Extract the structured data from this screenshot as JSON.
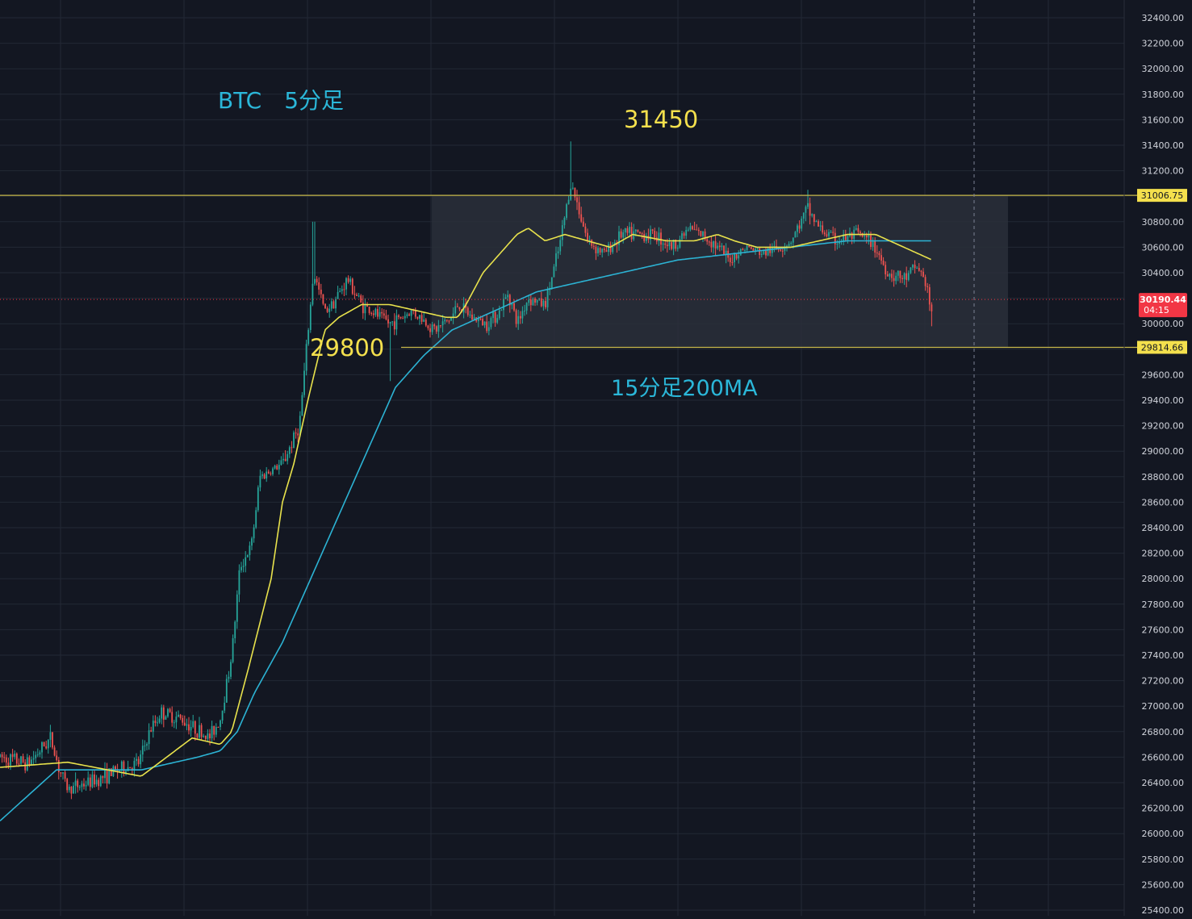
{
  "chart_data": {
    "type": "candlestick",
    "symbol_label": "BTC　5分足",
    "peak_label": "31450",
    "support_label": "29800",
    "ma_label": "15分足200MA",
    "y_axis_ticks": [
      "25400.00",
      "25600.00",
      "25800.00",
      "26000.00",
      "26200.00",
      "26400.00",
      "26600.00",
      "26800.00",
      "27000.00",
      "27200.00",
      "27400.00",
      "27600.00",
      "27800.00",
      "28000.00",
      "28200.00",
      "28400.00",
      "28600.00",
      "28800.00",
      "29000.00",
      "29200.00",
      "29400.00",
      "29600.00",
      "29800.00",
      "30000.00",
      "30200.00",
      "30400.00",
      "30600.00",
      "30800.00",
      "31000.00",
      "31200.00",
      "31400.00",
      "31600.00",
      "31800.00",
      "32000.00",
      "32200.00",
      "32400.00"
    ],
    "ylim": [
      25400,
      32400
    ],
    "grid": true,
    "horizontal_levels": [
      {
        "label": "31006.75",
        "value": 31006.75
      },
      {
        "label": "29814.66",
        "value": 29814.66
      }
    ],
    "current_price": {
      "label": "30190.44",
      "countdown": "04:15",
      "value": 30190.44
    },
    "range_box": {
      "top": 31006.75,
      "bottom": 29814.66
    },
    "price_anchors": [
      [
        0,
        26600
      ],
      [
        0.05,
        26550
      ],
      [
        0.09,
        26750
      ],
      [
        0.105,
        26500
      ],
      [
        0.12,
        26350
      ],
      [
        0.17,
        26420
      ],
      [
        0.21,
        26500
      ],
      [
        0.245,
        26550
      ],
      [
        0.265,
        26800
      ],
      [
        0.285,
        26950
      ],
      [
        0.32,
        26900
      ],
      [
        0.37,
        26750
      ],
      [
        0.39,
        26900
      ],
      [
        0.41,
        27400
      ],
      [
        0.425,
        28100
      ],
      [
        0.445,
        28250
      ],
      [
        0.46,
        28800
      ],
      [
        0.5,
        28900
      ],
      [
        0.53,
        29200
      ],
      [
        0.555,
        30400
      ],
      [
        0.575,
        30100
      ],
      [
        0.595,
        30200
      ],
      [
        0.615,
        30350
      ],
      [
        0.64,
        30150
      ],
      [
        0.69,
        30000
      ],
      [
        0.73,
        30100
      ],
      [
        0.77,
        29950
      ],
      [
        0.8,
        30050
      ],
      [
        0.81,
        30150
      ],
      [
        0.835,
        30050
      ],
      [
        0.86,
        30000
      ],
      [
        0.885,
        30100
      ],
      [
        0.9,
        30250
      ],
      [
        0.915,
        30000
      ],
      [
        0.935,
        30200
      ],
      [
        0.965,
        30150
      ],
      [
        0.99,
        30600
      ],
      [
        1.01,
        31100
      ],
      [
        1.025,
        30900
      ],
      [
        1.04,
        30650
      ],
      [
        1.07,
        30550
      ],
      [
        1.1,
        30700
      ],
      [
        1.13,
        30700
      ],
      [
        1.16,
        30700
      ],
      [
        1.19,
        30600
      ],
      [
        1.22,
        30750
      ],
      [
        1.26,
        30650
      ],
      [
        1.29,
        30500
      ],
      [
        1.32,
        30600
      ],
      [
        1.35,
        30550
      ],
      [
        1.38,
        30600
      ],
      [
        1.4,
        30650
      ],
      [
        1.43,
        30900
      ],
      [
        1.45,
        30750
      ],
      [
        1.48,
        30650
      ],
      [
        1.52,
        30700
      ],
      [
        1.55,
        30600
      ],
      [
        1.57,
        30400
      ],
      [
        1.6,
        30350
      ],
      [
        1.625,
        30450
      ],
      [
        1.64,
        30300
      ],
      [
        1.65,
        30050
      ]
    ],
    "wick_extremes": [
      {
        "t": 0.555,
        "value": 30800
      },
      {
        "t": 1.01,
        "value": 31430
      },
      {
        "t": 0.69,
        "value": 29550
      },
      {
        "t": 1.43,
        "value": 31050
      },
      {
        "t": 1.65,
        "value": 29980
      }
    ],
    "ma_fast_anchors": [
      [
        0,
        26520
      ],
      [
        0.12,
        26560
      ],
      [
        0.25,
        26450
      ],
      [
        0.34,
        26750
      ],
      [
        0.39,
        26700
      ],
      [
        0.41,
        26800
      ],
      [
        0.44,
        27300
      ],
      [
        0.48,
        28000
      ],
      [
        0.5,
        28600
      ],
      [
        0.52,
        28900
      ],
      [
        0.545,
        29400
      ],
      [
        0.575,
        29950
      ],
      [
        0.6,
        30050
      ],
      [
        0.64,
        30150
      ],
      [
        0.69,
        30150
      ],
      [
        0.74,
        30100
      ],
      [
        0.79,
        30050
      ],
      [
        0.81,
        30050
      ],
      [
        0.825,
        30150
      ],
      [
        0.855,
        30400
      ],
      [
        0.895,
        30600
      ],
      [
        0.915,
        30700
      ],
      [
        0.935,
        30750
      ],
      [
        0.965,
        30650
      ],
      [
        1.0,
        30700
      ],
      [
        1.08,
        30600
      ],
      [
        1.12,
        30700
      ],
      [
        1.18,
        30650
      ],
      [
        1.23,
        30650
      ],
      [
        1.27,
        30700
      ],
      [
        1.3,
        30650
      ],
      [
        1.34,
        30600
      ],
      [
        1.4,
        30600
      ],
      [
        1.45,
        30650
      ],
      [
        1.5,
        30700
      ],
      [
        1.55,
        30700
      ],
      [
        1.6,
        30600
      ],
      [
        1.65,
        30500
      ]
    ],
    "ma_slow_anchors": [
      [
        0,
        26100
      ],
      [
        0.1,
        26500
      ],
      [
        0.15,
        26500
      ],
      [
        0.25,
        26500
      ],
      [
        0.3,
        26550
      ],
      [
        0.35,
        26600
      ],
      [
        0.39,
        26650
      ],
      [
        0.42,
        26800
      ],
      [
        0.45,
        27100
      ],
      [
        0.5,
        27500
      ],
      [
        0.55,
        28000
      ],
      [
        0.6,
        28500
      ],
      [
        0.65,
        29000
      ],
      [
        0.7,
        29500
      ],
      [
        0.75,
        29750
      ],
      [
        0.8,
        29950
      ],
      [
        0.85,
        30050
      ],
      [
        0.9,
        30150
      ],
      [
        0.95,
        30250
      ],
      [
        1.0,
        30300
      ],
      [
        1.1,
        30400
      ],
      [
        1.2,
        30500
      ],
      [
        1.3,
        30550
      ],
      [
        1.4,
        30600
      ],
      [
        1.5,
        30650
      ],
      [
        1.6,
        30650
      ],
      [
        1.65,
        30650
      ]
    ],
    "colors": {
      "background": "#131722",
      "grid": "#232835",
      "up": "#26a69a",
      "down": "#ef5350",
      "ma_fast": "#e8e24c",
      "ma_slow": "#2cb3d4",
      "level_line": "#c7b84b",
      "label_yellow": "#f4e04d",
      "label_cyan": "#2bb7d9",
      "box_fill": "#2a2f3a",
      "axis_text": "#d1d4dc",
      "price_tag": "#f23645",
      "level_tag": "#f4e04d"
    }
  }
}
